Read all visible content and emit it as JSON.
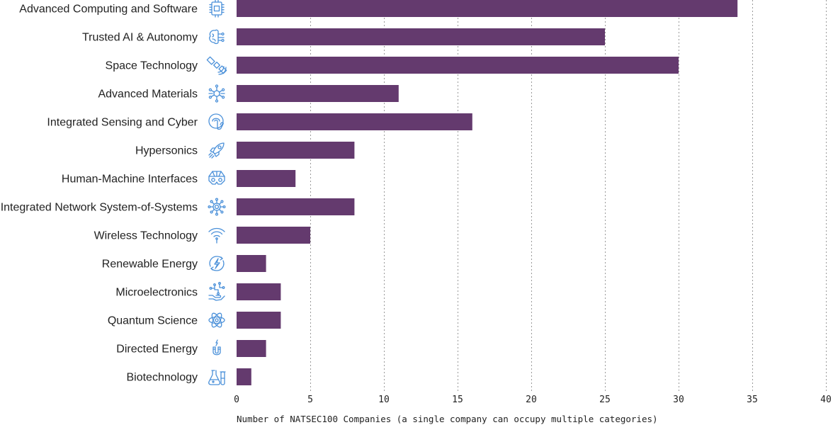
{
  "chart_data": {
    "type": "bar",
    "orientation": "horizontal",
    "categories": [
      "Advanced Computing and Software",
      "Trusted AI & Autonomy",
      "Space Technology",
      "Advanced Materials",
      "Integrated Sensing and Cyber",
      "Hypersonics",
      "Human-Machine Interfaces",
      "Integrated Network System-of-Systems",
      "Wireless Technology",
      "Renewable Energy",
      "Microelectronics",
      "Quantum Science",
      "Directed Energy",
      "Biotechnology"
    ],
    "icons": [
      "chip-icon",
      "brain-circuit-icon",
      "satellite-icon",
      "molecule-icon",
      "fingerprint-touch-icon",
      "rocket-icon",
      "vr-headset-icon",
      "network-hub-icon",
      "wifi-icon",
      "energy-bolt-icon",
      "hand-circuit-icon",
      "atom-icon",
      "magnet-icon",
      "lab-flask-icon"
    ],
    "values": [
      34,
      25,
      30,
      11,
      16,
      8,
      4,
      8,
      5,
      2,
      3,
      3,
      2,
      1
    ],
    "xlim": [
      0,
      40
    ],
    "xticks": [
      0,
      5,
      10,
      15,
      20,
      25,
      30,
      35,
      40
    ],
    "xlabel": "Number of NATSEC100 Companies (a single company can occupy multiple categories)",
    "ylabel": "",
    "title": "",
    "grid": "vertical dotted",
    "colors": {
      "bar": "#643A6E",
      "icon": "#4A90D9",
      "grid": "#9A9A9A",
      "text": "#222222"
    }
  }
}
